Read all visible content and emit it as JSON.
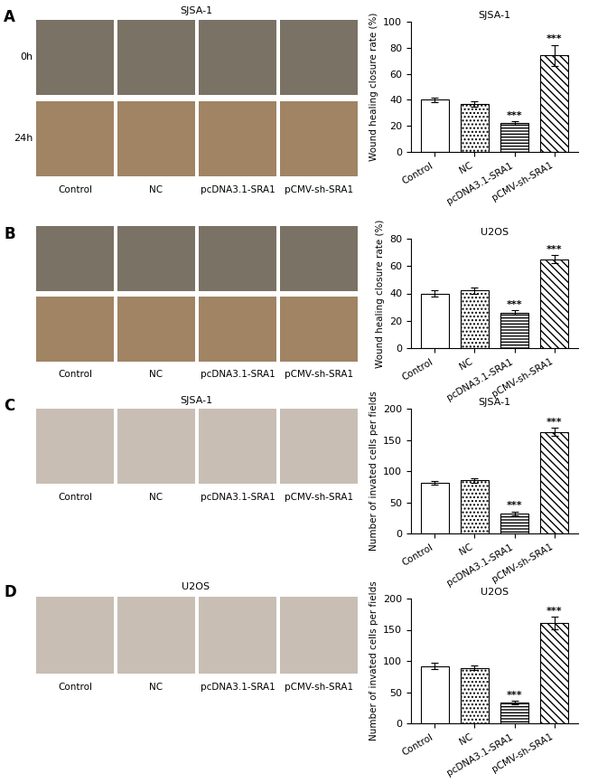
{
  "panels": [
    {
      "letter": "A",
      "title": "SJSA-1",
      "row_labels": [
        "0h",
        "24h"
      ],
      "labels": [
        "Control",
        "NC",
        "pcDNA3.1-SRA1",
        "pCMV-sh-SRA1"
      ]
    },
    {
      "letter": "B",
      "row_labels": [
        null,
        null
      ],
      "labels": [
        "Control",
        "NC",
        "pcDNA3.1-SRA1",
        "pCMV-sh-SRA1"
      ]
    },
    {
      "letter": "C",
      "title": "SJSA-1",
      "row_labels": [
        null
      ],
      "labels": [
        "Control",
        "NC",
        "pcDNA3.1-SRA1",
        "pCMV-sh-SRA1"
      ]
    },
    {
      "letter": "D",
      "title": "U2OS",
      "row_labels": [
        null
      ],
      "labels": [
        "Control",
        "NC",
        "pcDNA3.1-SRA1",
        "pCMV-sh-SRA1"
      ]
    }
  ],
  "chart_data": [
    {
      "type": "bar",
      "title": "SJSA-1",
      "y_label": "Wound healing closure rate (%)",
      "categories": [
        "Control",
        "NC",
        "pcDNA3.1-SRA1",
        "pCMV-sh-SRA1"
      ],
      "values": [
        40,
        37,
        22,
        74
      ],
      "errors": [
        2,
        2,
        1.5,
        8
      ],
      "color": "white",
      "annotations": [
        {
          "category": "pcDNA3.1-SRA1",
          "text": "***"
        },
        {
          "category": "pCMV-sh-SRA1",
          "text": "***"
        }
      ],
      "ylim": [
        0,
        100
      ],
      "yticks": [
        0,
        20,
        40,
        60,
        80,
        100
      ]
    },
    {
      "type": "bar",
      "title": "U2OS",
      "y_label": "Wound healing closure rate (%)",
      "categories": [
        "Control",
        "NC",
        "pcDNA3.1-SRA1",
        "pCMV-sh-SRA1"
      ],
      "values": [
        40,
        42,
        26,
        65
      ],
      "errors": [
        2,
        2,
        1.5,
        3
      ],
      "color": "white",
      "annotations": [
        {
          "category": "pcDNA3.1-SRA1",
          "text": "***"
        },
        {
          "category": "pCMV-sh-SRA1",
          "text": "***"
        }
      ],
      "ylim": [
        0,
        80
      ],
      "yticks": [
        0,
        20,
        40,
        60,
        80
      ]
    },
    {
      "type": "bar",
      "title": "SJSA-1",
      "y_label": "Number of invated cells per fields",
      "categories": [
        "Control",
        "NC",
        "pcDNA3.1-SRA1",
        "pCMV-sh-SRA1"
      ],
      "values": [
        81,
        85,
        32,
        163
      ],
      "errors": [
        3,
        4,
        3,
        6
      ],
      "color": "white",
      "annotations": [
        {
          "category": "pcDNA3.1-SRA1",
          "text": "***"
        },
        {
          "category": "pCMV-sh-SRA1",
          "text": "***"
        }
      ],
      "ylim": [
        0,
        200
      ],
      "yticks": [
        0,
        50,
        100,
        150,
        200
      ]
    },
    {
      "type": "bar",
      "title": "U2OS",
      "y_label": "Number of invated cells per fields",
      "categories": [
        "Control",
        "NC",
        "pcDNA3.1-SRA1",
        "pCMV-sh-SRA1"
      ],
      "values": [
        92,
        89,
        33,
        161
      ],
      "errors": [
        5,
        4,
        3,
        10
      ],
      "color": "white",
      "annotations": [
        {
          "category": "pcDNA3.1-SRA1",
          "text": "***"
        },
        {
          "category": "pCMV-sh-SRA1",
          "text": "***"
        }
      ],
      "ylim": [
        0,
        200
      ],
      "yticks": [
        0,
        50,
        100,
        150,
        200
      ]
    }
  ]
}
